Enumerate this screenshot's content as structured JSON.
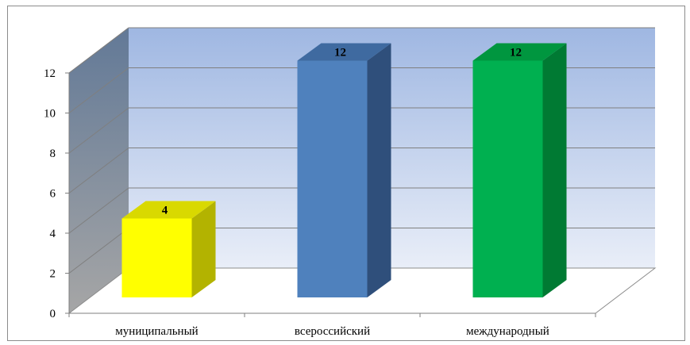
{
  "chart_data": {
    "type": "bar",
    "categories": [
      "муниципальный",
      "всероссийский",
      "международный"
    ],
    "values": [
      4,
      12,
      12
    ],
    "data_labels": [
      "4",
      "12",
      "12"
    ],
    "ylim": [
      0,
      12
    ],
    "yticks": [
      "0",
      "2",
      "4",
      "6",
      "8",
      "10",
      "12"
    ],
    "grid": true,
    "legend": "none",
    "colors": {
      "bars_front": [
        "#ffff00",
        "#4f81bd",
        "#00b050"
      ],
      "bars_side": [
        "#b3b300",
        "#2f4f7b",
        "#007a33"
      ],
      "bars_top": [
        "#d9d900",
        "#3f6aa0",
        "#00963f"
      ],
      "wall_top": "#9fb7e2",
      "wall_bottom": "#e9eef8",
      "side_wall_top": "#627997",
      "side_wall_bottom": "#a6a6a6",
      "grid": "#7f7f7f"
    }
  }
}
